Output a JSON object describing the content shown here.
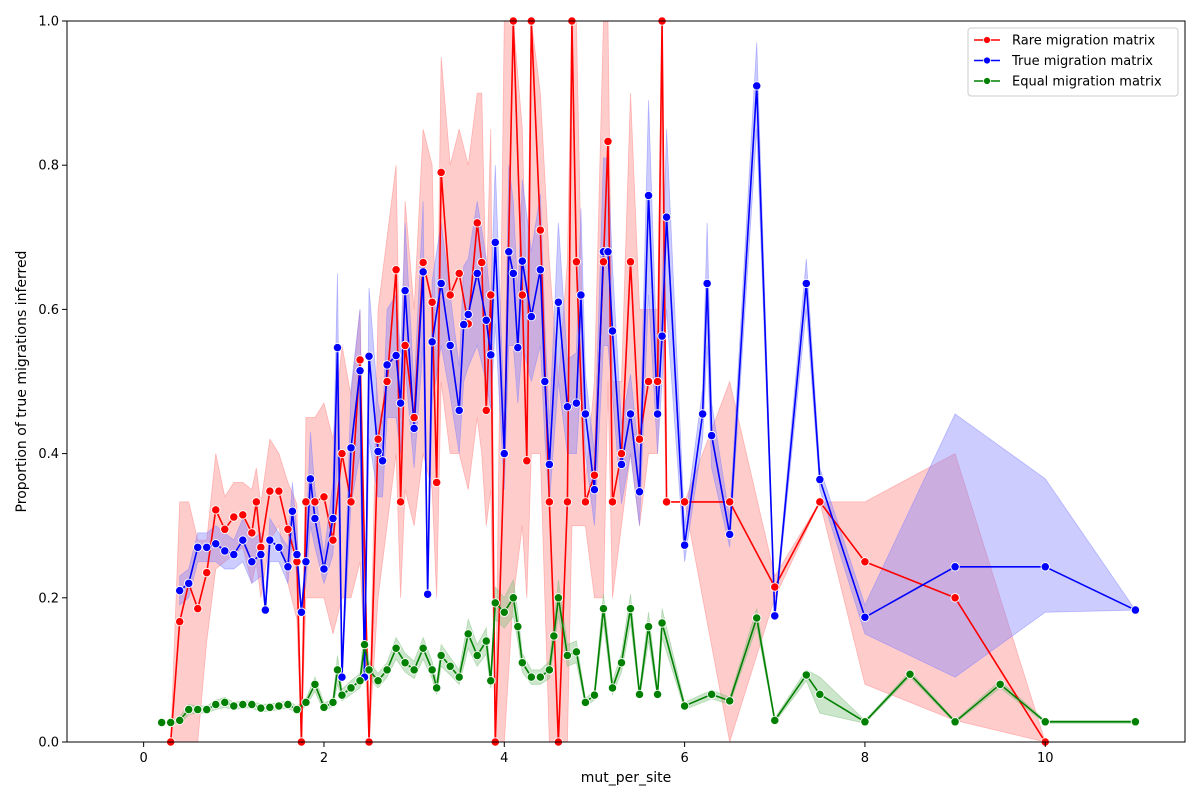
{
  "chart_data": {
    "type": "line",
    "title": "",
    "xlabel": "mut_per_site",
    "ylabel": "Proportion of true migrations inferred",
    "xlim": [
      -0.85,
      11.55
    ],
    "ylim": [
      0.0,
      1.0
    ],
    "xticks": [
      0,
      2,
      4,
      6,
      8,
      10
    ],
    "yticks": [
      0.0,
      0.2,
      0.4,
      0.6,
      0.8,
      1.0
    ],
    "xtick_labels": [
      "0",
      "2",
      "4",
      "6",
      "8",
      "10"
    ],
    "ytick_labels": [
      "0.0",
      "0.2",
      "0.4",
      "0.6",
      "0.8",
      "1.0"
    ],
    "grid": false,
    "legend_position": "top-right",
    "series": [
      {
        "name": "Rare migration matrix",
        "color": "#ff0000",
        "band_color": "#ff8080",
        "x": [
          0.3,
          0.4,
          0.5,
          0.6,
          0.7,
          0.8,
          0.9,
          1.0,
          1.1,
          1.2,
          1.25,
          1.3,
          1.4,
          1.5,
          1.6,
          1.7,
          1.75,
          1.8,
          1.9,
          2.0,
          2.1,
          2.2,
          2.3,
          2.4,
          2.5,
          2.6,
          2.7,
          2.8,
          2.85,
          2.9,
          3.0,
          3.1,
          3.2,
          3.25,
          3.3,
          3.4,
          3.5,
          3.6,
          3.7,
          3.75,
          3.8,
          3.85,
          3.9,
          4.0,
          4.1,
          4.2,
          4.25,
          4.3,
          4.4,
          4.5,
          4.6,
          4.7,
          4.75,
          4.8,
          4.9,
          5.0,
          5.1,
          5.15,
          5.2,
          5.3,
          5.4,
          5.5,
          5.6,
          5.7,
          5.75,
          5.8,
          6.0,
          6.5,
          7.0,
          7.5,
          8.0,
          9.0,
          10.0
        ],
        "values": [
          0.0,
          0.167,
          0.22,
          0.185,
          0.235,
          0.322,
          0.295,
          0.312,
          0.315,
          0.29,
          0.333,
          0.27,
          0.348,
          0.348,
          0.295,
          0.25,
          0.0,
          0.333,
          0.333,
          0.34,
          0.28,
          0.4,
          0.333,
          0.53,
          0.0,
          0.42,
          0.5,
          0.655,
          0.333,
          0.55,
          0.45,
          0.665,
          0.61,
          0.36,
          0.79,
          0.62,
          0.65,
          0.58,
          0.72,
          0.665,
          0.46,
          0.62,
          0.0,
          0.4,
          1.0,
          0.62,
          0.39,
          1.0,
          0.71,
          0.333,
          0.0,
          0.333,
          1.0,
          0.666,
          0.333,
          0.37,
          0.666,
          0.833,
          0.333,
          0.4,
          0.666,
          0.42,
          0.5,
          0.5,
          1.0,
          0.333,
          0.333,
          0.333,
          0.215,
          0.333,
          0.25,
          0.2,
          0.0
        ],
        "ci_lower": [
          0.0,
          0.0,
          0.0,
          0.0,
          0.14,
          0.24,
          0.25,
          0.26,
          0.27,
          0.22,
          0.25,
          0.2,
          0.28,
          0.3,
          0.22,
          0.17,
          0.0,
          0.2,
          0.2,
          0.2,
          0.15,
          0.2,
          0.2,
          0.25,
          0.0,
          0.2,
          0.3,
          0.4,
          0.2,
          0.35,
          0.3,
          0.4,
          0.35,
          0.2,
          0.5,
          0.4,
          0.4,
          0.35,
          0.45,
          0.4,
          0.3,
          0.35,
          0.0,
          0.0,
          0.2,
          0.3,
          0.2,
          0.4,
          0.4,
          0.0,
          0.0,
          0.0,
          0.3,
          0.3,
          0.3,
          0.2,
          0.2,
          0.5,
          0.2,
          0.3,
          0.4,
          0.3,
          0.4,
          0.4,
          0.6,
          0.333,
          0.333,
          0.0,
          0.2,
          0.333,
          0.08,
          0.03,
          0.0
        ],
        "ci_upper": [
          0.0,
          0.333,
          0.333,
          0.28,
          0.28,
          0.4,
          0.34,
          0.36,
          0.36,
          0.35,
          0.38,
          0.33,
          0.42,
          0.4,
          0.36,
          0.33,
          0.0,
          0.45,
          0.45,
          0.47,
          0.42,
          0.55,
          0.48,
          0.6,
          0.0,
          0.6,
          0.7,
          0.8,
          0.45,
          0.75,
          0.6,
          0.85,
          0.8,
          0.5,
          0.95,
          0.8,
          0.85,
          0.8,
          0.9,
          0.9,
          0.62,
          0.85,
          0.0,
          1.0,
          1.0,
          0.85,
          0.6,
          1.0,
          0.9,
          0.666,
          0.5,
          0.666,
          1.0,
          1.0,
          0.36,
          0.5,
          1.0,
          1.0,
          0.5,
          0.5,
          0.9,
          0.6,
          0.6,
          0.6,
          1.0,
          0.333,
          0.333,
          0.5,
          0.23,
          0.333,
          0.333,
          0.4,
          0.0
        ]
      },
      {
        "name": "True migration matrix",
        "color": "#0000ff",
        "band_color": "#8080ff",
        "x": [
          0.4,
          0.5,
          0.6,
          0.7,
          0.8,
          0.9,
          1.0,
          1.1,
          1.2,
          1.3,
          1.35,
          1.4,
          1.5,
          1.6,
          1.65,
          1.7,
          1.75,
          1.8,
          1.85,
          1.9,
          2.0,
          2.1,
          2.15,
          2.2,
          2.3,
          2.4,
          2.45,
          2.5,
          2.6,
          2.65,
          2.7,
          2.8,
          2.85,
          2.9,
          3.0,
          3.1,
          3.15,
          3.2,
          3.3,
          3.4,
          3.5,
          3.55,
          3.6,
          3.7,
          3.8,
          3.85,
          3.9,
          4.0,
          4.05,
          4.1,
          4.15,
          4.2,
          4.3,
          4.4,
          4.45,
          4.5,
          4.6,
          4.7,
          4.8,
          4.85,
          4.9,
          5.0,
          5.1,
          5.15,
          5.2,
          5.3,
          5.4,
          5.5,
          5.6,
          5.7,
          5.75,
          5.8,
          6.0,
          6.2,
          6.25,
          6.3,
          6.5,
          6.8,
          7.0,
          7.35,
          7.5,
          8.0,
          9.0,
          10.0,
          11.0
        ],
        "values": [
          0.21,
          0.22,
          0.27,
          0.27,
          0.275,
          0.265,
          0.26,
          0.28,
          0.25,
          0.26,
          0.183,
          0.28,
          0.27,
          0.243,
          0.32,
          0.26,
          0.18,
          0.25,
          0.365,
          0.31,
          0.24,
          0.31,
          0.547,
          0.09,
          0.408,
          0.515,
          0.09,
          0.535,
          0.403,
          0.39,
          0.523,
          0.536,
          0.47,
          0.626,
          0.435,
          0.652,
          0.205,
          0.555,
          0.636,
          0.55,
          0.46,
          0.579,
          0.593,
          0.65,
          0.585,
          0.537,
          0.693,
          0.4,
          0.68,
          0.65,
          0.547,
          0.667,
          0.59,
          0.655,
          0.5,
          0.385,
          0.61,
          0.465,
          0.47,
          0.62,
          0.455,
          0.35,
          0.68,
          0.68,
          0.57,
          0.385,
          0.455,
          0.347,
          0.758,
          0.455,
          0.563,
          0.728,
          0.273,
          0.455,
          0.636,
          0.425,
          0.288,
          0.91,
          0.175,
          0.636,
          0.364,
          0.173,
          0.243,
          0.243,
          0.183
        ],
        "ci_lower": [
          0.19,
          0.2,
          0.25,
          0.25,
          0.25,
          0.24,
          0.24,
          0.25,
          0.22,
          0.23,
          0.18,
          0.25,
          0.25,
          0.22,
          0.28,
          0.23,
          0.18,
          0.22,
          0.3,
          0.27,
          0.22,
          0.26,
          0.4,
          0.09,
          0.33,
          0.4,
          0.09,
          0.42,
          0.34,
          0.34,
          0.45,
          0.45,
          0.4,
          0.52,
          0.38,
          0.55,
          0.2,
          0.47,
          0.55,
          0.48,
          0.4,
          0.5,
          0.52,
          0.55,
          0.5,
          0.46,
          0.58,
          0.35,
          0.55,
          0.55,
          0.47,
          0.55,
          0.5,
          0.55,
          0.42,
          0.33,
          0.5,
          0.4,
          0.4,
          0.5,
          0.4,
          0.3,
          0.55,
          0.55,
          0.48,
          0.33,
          0.4,
          0.3,
          0.62,
          0.4,
          0.5,
          0.6,
          0.25,
          0.42,
          0.55,
          0.38,
          0.27,
          0.85,
          0.17,
          0.6,
          0.35,
          0.15,
          0.09,
          0.18,
          0.183
        ],
        "ci_upper": [
          0.23,
          0.24,
          0.29,
          0.29,
          0.3,
          0.29,
          0.28,
          0.31,
          0.28,
          0.29,
          0.19,
          0.31,
          0.29,
          0.27,
          0.36,
          0.29,
          0.18,
          0.28,
          0.43,
          0.35,
          0.26,
          0.36,
          0.65,
          0.09,
          0.49,
          0.6,
          0.09,
          0.63,
          0.47,
          0.44,
          0.6,
          0.62,
          0.54,
          0.72,
          0.49,
          0.75,
          0.21,
          0.64,
          0.72,
          0.62,
          0.52,
          0.66,
          0.67,
          0.75,
          0.67,
          0.61,
          0.8,
          0.45,
          0.8,
          0.75,
          0.62,
          0.78,
          0.68,
          0.76,
          0.58,
          0.44,
          0.72,
          0.53,
          0.54,
          0.74,
          0.51,
          0.4,
          0.81,
          0.81,
          0.66,
          0.44,
          0.51,
          0.39,
          0.89,
          0.51,
          0.63,
          0.85,
          0.3,
          0.49,
          0.72,
          0.47,
          0.31,
          0.97,
          0.18,
          0.67,
          0.38,
          0.19,
          0.455,
          0.365,
          0.183
        ]
      },
      {
        "name": "Equal migration matrix",
        "color": "#008000",
        "band_color": "#80c080",
        "x": [
          0.2,
          0.3,
          0.4,
          0.5,
          0.6,
          0.7,
          0.8,
          0.9,
          1.0,
          1.1,
          1.2,
          1.3,
          1.4,
          1.5,
          1.6,
          1.7,
          1.8,
          1.9,
          2.0,
          2.1,
          2.15,
          2.2,
          2.3,
          2.4,
          2.45,
          2.5,
          2.6,
          2.7,
          2.8,
          2.9,
          3.0,
          3.1,
          3.2,
          3.25,
          3.3,
          3.4,
          3.5,
          3.6,
          3.7,
          3.8,
          3.85,
          3.9,
          4.0,
          4.1,
          4.15,
          4.2,
          4.3,
          4.4,
          4.5,
          4.55,
          4.6,
          4.7,
          4.8,
          4.9,
          5.0,
          5.1,
          5.2,
          5.3,
          5.4,
          5.5,
          5.6,
          5.7,
          5.75,
          6.0,
          6.3,
          6.5,
          6.8,
          7.0,
          7.35,
          7.5,
          8.0,
          8.5,
          9.0,
          9.5,
          10.0,
          11.0
        ],
        "values": [
          0.027,
          0.027,
          0.03,
          0.045,
          0.045,
          0.045,
          0.052,
          0.055,
          0.05,
          0.052,
          0.052,
          0.047,
          0.048,
          0.05,
          0.052,
          0.045,
          0.055,
          0.08,
          0.048,
          0.055,
          0.1,
          0.065,
          0.075,
          0.085,
          0.135,
          0.1,
          0.085,
          0.1,
          0.13,
          0.11,
          0.1,
          0.13,
          0.1,
          0.075,
          0.12,
          0.105,
          0.09,
          0.15,
          0.12,
          0.14,
          0.085,
          0.193,
          0.18,
          0.2,
          0.16,
          0.11,
          0.09,
          0.09,
          0.1,
          0.147,
          0.2,
          0.12,
          0.125,
          0.055,
          0.065,
          0.185,
          0.075,
          0.11,
          0.185,
          0.066,
          0.16,
          0.066,
          0.165,
          0.05,
          0.066,
          0.057,
          0.172,
          0.03,
          0.093,
          0.066,
          0.028,
          0.094,
          0.028,
          0.08,
          0.028,
          0.028
        ],
        "ci_lower": [
          0.027,
          0.027,
          0.025,
          0.038,
          0.04,
          0.04,
          0.045,
          0.048,
          0.045,
          0.047,
          0.047,
          0.042,
          0.043,
          0.045,
          0.047,
          0.04,
          0.05,
          0.07,
          0.042,
          0.05,
          0.08,
          0.057,
          0.066,
          0.075,
          0.11,
          0.088,
          0.075,
          0.09,
          0.115,
          0.097,
          0.088,
          0.115,
          0.088,
          0.066,
          0.105,
          0.093,
          0.08,
          0.13,
          0.105,
          0.122,
          0.075,
          0.17,
          0.158,
          0.175,
          0.14,
          0.097,
          0.08,
          0.08,
          0.088,
          0.13,
          0.175,
          0.105,
          0.11,
          0.05,
          0.058,
          0.165,
          0.066,
          0.097,
          0.165,
          0.06,
          0.14,
          0.06,
          0.145,
          0.045,
          0.06,
          0.052,
          0.16,
          0.027,
          0.085,
          0.04,
          0.026,
          0.09,
          0.026,
          0.075,
          0.026,
          0.026
        ],
        "ci_upper": [
          0.029,
          0.029,
          0.035,
          0.052,
          0.05,
          0.05,
          0.058,
          0.062,
          0.055,
          0.057,
          0.057,
          0.052,
          0.053,
          0.055,
          0.057,
          0.05,
          0.06,
          0.09,
          0.054,
          0.06,
          0.12,
          0.073,
          0.085,
          0.095,
          0.16,
          0.112,
          0.095,
          0.11,
          0.145,
          0.123,
          0.112,
          0.145,
          0.112,
          0.084,
          0.135,
          0.117,
          0.1,
          0.17,
          0.135,
          0.158,
          0.095,
          0.215,
          0.2,
          0.225,
          0.18,
          0.123,
          0.1,
          0.1,
          0.112,
          0.165,
          0.225,
          0.135,
          0.14,
          0.06,
          0.072,
          0.205,
          0.084,
          0.123,
          0.205,
          0.072,
          0.18,
          0.072,
          0.185,
          0.055,
          0.072,
          0.062,
          0.185,
          0.033,
          0.1,
          0.09,
          0.03,
          0.098,
          0.03,
          0.085,
          0.03,
          0.03
        ]
      }
    ]
  }
}
